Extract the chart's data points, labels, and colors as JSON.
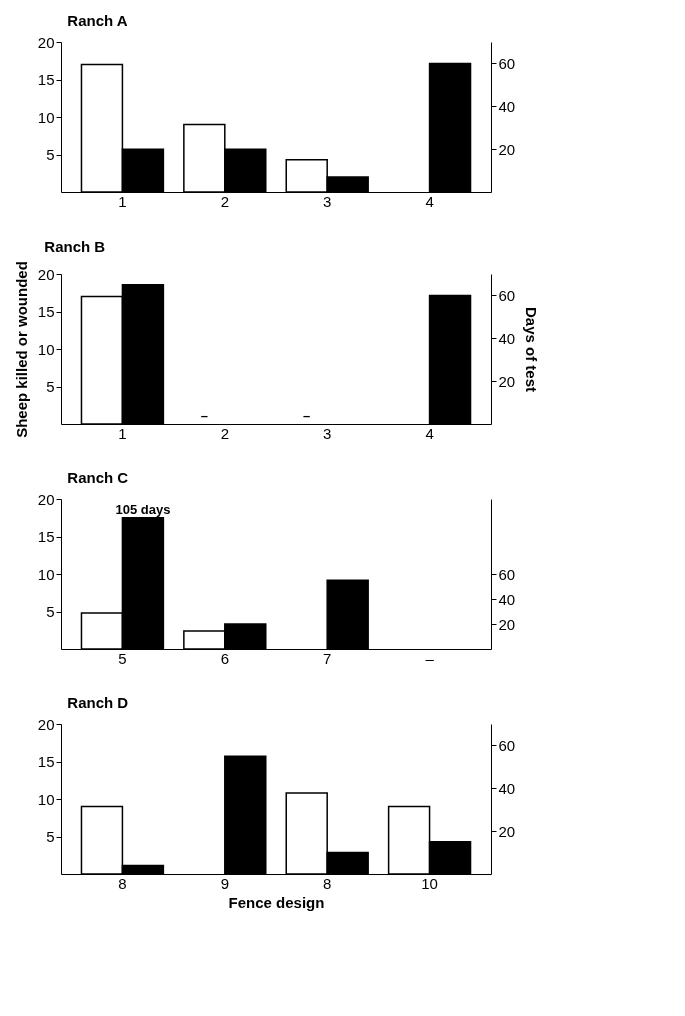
{
  "chart_data": [
    {
      "type": "bar",
      "title": "Ranch A",
      "categories": [
        "1",
        "2",
        "3",
        "4"
      ],
      "ylim": [
        0,
        20
      ],
      "yticks": [
        5,
        10,
        15,
        20
      ],
      "y2lim": [
        0,
        70
      ],
      "y2ticks": [
        20,
        40,
        60
      ],
      "grid": false,
      "series": [
        {
          "color": "#ffffff",
          "values": [
            17,
            9,
            4.3,
            null
          ]
        },
        {
          "color": "#000000",
          "axis": "y2",
          "values": [
            20,
            20,
            7,
            60
          ]
        }
      ]
    },
    {
      "type": "bar",
      "title": "Ranch B",
      "categories": [
        "1",
        "2",
        "3",
        "4"
      ],
      "ylabel": "Sheep killed or wounded",
      "y2label": "Days of test",
      "ylim": [
        0,
        20
      ],
      "yticks": [
        5,
        10,
        15,
        20
      ],
      "y2lim": [
        0,
        70
      ],
      "y2ticks": [
        20,
        40,
        60
      ],
      "grid": false,
      "series": [
        {
          "color": "#ffffff",
          "values": [
            17,
            null,
            null,
            null
          ],
          "value_labels": [
            null,
            "–",
            "–",
            null
          ]
        },
        {
          "color": "#000000",
          "axis": "y2",
          "values": [
            65,
            null,
            null,
            60
          ]
        }
      ]
    },
    {
      "type": "bar",
      "title": "Ranch C",
      "categories": [
        "5",
        "6",
        "7",
        "–"
      ],
      "ylim": [
        0,
        20
      ],
      "yticks": [
        5,
        10,
        15,
        20
      ],
      "y2lim": [
        0,
        120
      ],
      "y2ticks": [
        20,
        40,
        60
      ],
      "grid": false,
      "series": [
        {
          "color": "#ffffff",
          "values": [
            4.8,
            2.4,
            null,
            null
          ]
        },
        {
          "color": "#000000",
          "axis": "y2",
          "values": [
            105,
            20,
            55,
            null
          ],
          "value_labels": [
            "105 days",
            null,
            null,
            null
          ]
        }
      ]
    },
    {
      "type": "bar",
      "title": "Ranch D",
      "categories": [
        "8",
        "9",
        "8",
        "10"
      ],
      "xlabel": "Fence design",
      "ylim": [
        0,
        20
      ],
      "yticks": [
        5,
        10,
        15,
        20
      ],
      "y2lim": [
        0,
        70
      ],
      "y2ticks": [
        20,
        40,
        60
      ],
      "grid": false,
      "series": [
        {
          "color": "#ffffff",
          "values": [
            9,
            null,
            10.8,
            9
          ]
        },
        {
          "color": "#000000",
          "axis": "y2",
          "values": [
            4,
            55,
            10,
            15
          ]
        }
      ]
    }
  ]
}
